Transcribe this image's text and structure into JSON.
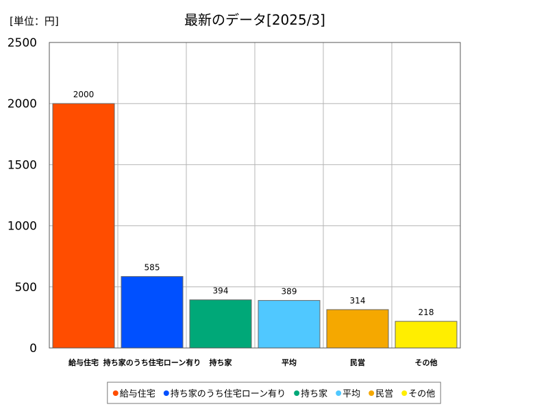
{
  "chart_data": {
    "type": "bar",
    "title": "最新のデータ[2025/3]",
    "unit_label": "[単位：円]",
    "categories": [
      "給与住宅",
      "持ち家のうち住宅ローン有り",
      "持ち家",
      "平均",
      "民営",
      "その他"
    ],
    "values": [
      2000,
      585,
      394,
      389,
      314,
      218
    ],
    "colors": [
      "#ff4d00",
      "#0050ff",
      "#00a878",
      "#50c8ff",
      "#f5a800",
      "#ffee00"
    ],
    "ylim": [
      0,
      2500
    ],
    "yticks": [
      0,
      500,
      1000,
      1500,
      2000,
      2500
    ],
    "grid": true,
    "legend_position": "bottom",
    "data_labels": true
  }
}
